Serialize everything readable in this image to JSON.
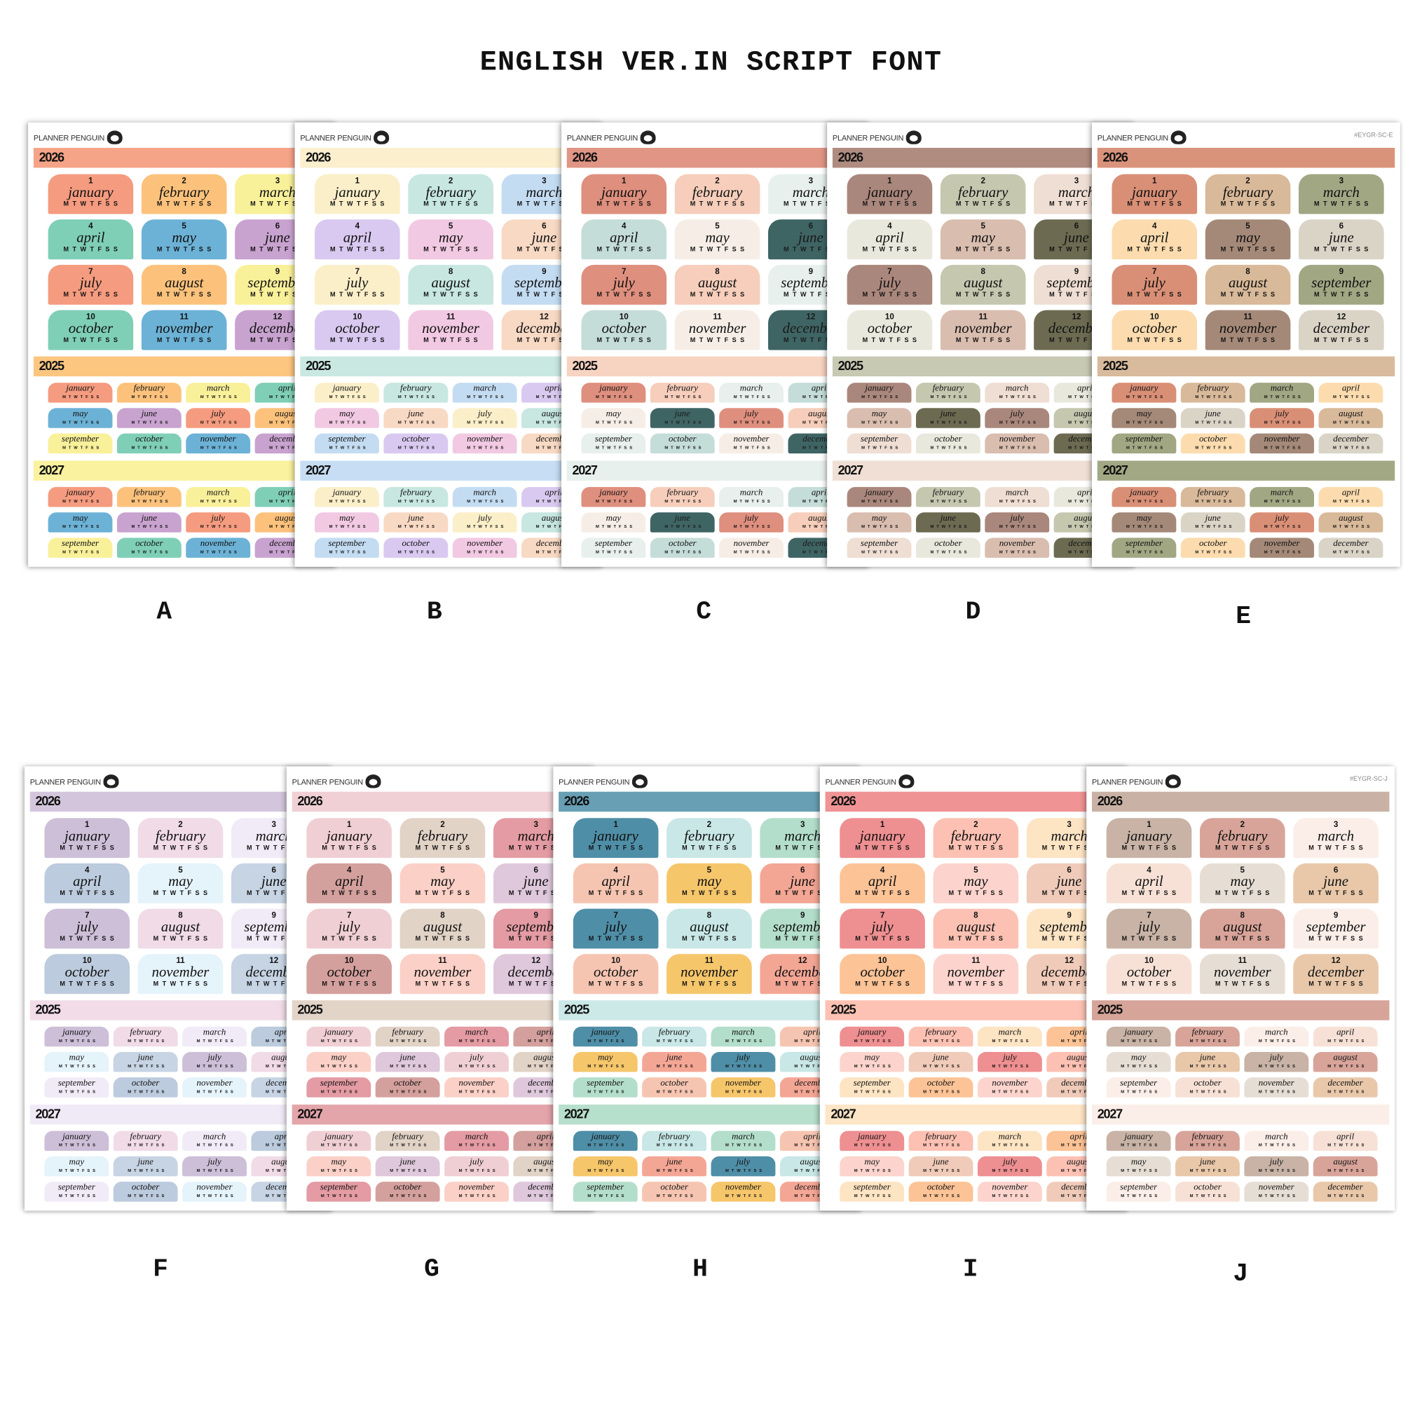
{
  "title": "ENGLISH VER.IN SCRIPT FONT",
  "brand": "PLANNER PENGUIN",
  "years": [
    "2026",
    "2025",
    "2027"
  ],
  "weekdays": "MTWTFSS",
  "months": [
    "january",
    "february",
    "march",
    "april",
    "may",
    "june",
    "july",
    "august",
    "september",
    "october",
    "november",
    "december"
  ],
  "month_numbers": [
    "1",
    "2",
    "3",
    "4",
    "5",
    "6",
    "7",
    "8",
    "9",
    "10",
    "11",
    "12"
  ],
  "sheets": [
    {
      "label": "A",
      "palette": [
        "#f59b7f",
        "#fcc27c",
        "#f9f09a",
        "#7fcfb6",
        "#6cb2d6",
        "#c9a3d0"
      ],
      "bars": [
        "#f6a488",
        "#fcc680",
        "#faf29e"
      ]
    },
    {
      "label": "B",
      "palette": [
        "#fbefc9",
        "#c7e7e0",
        "#c4dcf2",
        "#d9c9f0",
        "#f2c9e2",
        "#f8d9c4"
      ],
      "bars": [
        "#fbefcd",
        "#c9e8e1",
        "#c6ddf3"
      ]
    },
    {
      "label": "C",
      "palette": [
        "#df8f7e",
        "#f6cebb",
        "#e7f0ed",
        "#c5ddd8",
        "#f6eee6",
        "#3f6464"
      ],
      "bars": [
        "#e09585",
        "#f7d3c2",
        "#e8f0ed"
      ]
    },
    {
      "label": "D",
      "palette": [
        "#aa877c",
        "#c5c7af",
        "#efded3",
        "#e9e8dd",
        "#d9bdaf",
        "#6c6b52"
      ],
      "bars": [
        "#b08c80",
        "#c7c9b2",
        "#f0dfd4"
      ]
    },
    {
      "label": "E",
      "code": "#EYGR-SC-E",
      "palette": [
        "#d98f76",
        "#d8b999",
        "#a1a783",
        "#fcdcae",
        "#a58978",
        "#dad4c7"
      ],
      "bars": [
        "#da937b",
        "#d8bb9c",
        "#a2a884"
      ]
    },
    {
      "label": "F",
      "palette": [
        "#cdbfd8",
        "#f0dbe6",
        "#f1ebf8",
        "#bccbdd",
        "#e5f3fb",
        "#c6d4e4"
      ],
      "bars": [
        "#d3c6dc",
        "#f1dce7",
        "#f0eaf7"
      ]
    },
    {
      "label": "G",
      "palette": [
        "#f0cfd4",
        "#e2d3c7",
        "#e49ba3",
        "#d4a09d",
        "#fbd0c7",
        "#dfc8dc"
      ],
      "bars": [
        "#f0d0d5",
        "#e3d4c8",
        "#e3a4aa"
      ]
    },
    {
      "label": "H",
      "palette": [
        "#4f8ea7",
        "#c8e7e6",
        "#b3decb",
        "#f6c5b1",
        "#f6c66b",
        "#f4a695"
      ],
      "bars": [
        "#689fb4",
        "#cce9e8",
        "#b6dfcc"
      ]
    },
    {
      "label": "I",
      "palette": [
        "#ee8f91",
        "#fcc1b3",
        "#fde4c3",
        "#fcc396",
        "#fcd4cd",
        "#f0cbb9"
      ],
      "bars": [
        "#f09394",
        "#fdc2b4",
        "#fde5c6"
      ]
    },
    {
      "label": "J",
      "code": "#EYGR-SC-J",
      "palette": [
        "#c8b3a6",
        "#d8a49a",
        "#fbeee8",
        "#f7e1d6",
        "#e6ded4",
        "#e9c8aa"
      ],
      "bars": [
        "#c9b2a5",
        "#d6a499",
        "#fbeee8"
      ]
    }
  ]
}
